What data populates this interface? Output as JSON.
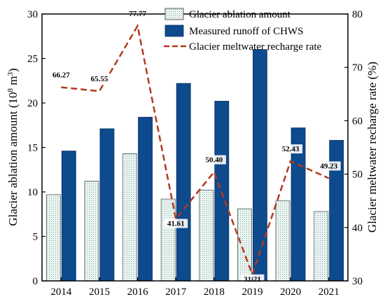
{
  "chart_data": {
    "type": "bar",
    "categories": [
      "2014",
      "2015",
      "2016",
      "2017",
      "2018",
      "2019",
      "2020",
      "2021"
    ],
    "series": [
      {
        "name": "Glacier ablation amount",
        "type": "bar",
        "axis": "left",
        "values": [
          9.7,
          11.2,
          14.3,
          9.2,
          10.2,
          8.1,
          9.0,
          7.8
        ],
        "color": "#e4f0ee"
      },
      {
        "name": "Measured runoff of CHWS",
        "type": "bar",
        "axis": "left",
        "values": [
          14.6,
          17.1,
          18.4,
          22.2,
          20.2,
          26.0,
          17.2,
          15.8
        ],
        "color": "#0d4a8e"
      },
      {
        "name": "Glacier meltwater recharge rate",
        "type": "line",
        "axis": "right",
        "values": [
          66.27,
          65.55,
          77.77,
          41.61,
          50.4,
          31.21,
          52.43,
          49.23
        ],
        "data_labels": [
          "66.27",
          "65.55",
          "77.77",
          "41.61",
          "50.40",
          "31.21",
          "52.43",
          "49.23"
        ],
        "color": "#b33a1e"
      }
    ],
    "left_axis": {
      "label_main": "Glacier ablation amount (10",
      "label_sup": "8",
      "label_tail": " m",
      "label_sup2": "3",
      "label_end": ")",
      "ylim": [
        0,
        30
      ],
      "ticks": [
        "0",
        "5",
        "10",
        "15",
        "20",
        "25",
        "30"
      ]
    },
    "right_axis": {
      "label": "Glacier meltwater recharge rate (%)",
      "ylim": [
        30,
        80
      ],
      "ticks": [
        "30",
        "40",
        "50",
        "60",
        "70",
        "80"
      ]
    },
    "legend": {
      "placement": "top-right",
      "entries": [
        "Glacier ablation amount",
        "Measured runoff of CHWS",
        "Glacier meltwater recharge rate"
      ]
    },
    "grid": false
  }
}
